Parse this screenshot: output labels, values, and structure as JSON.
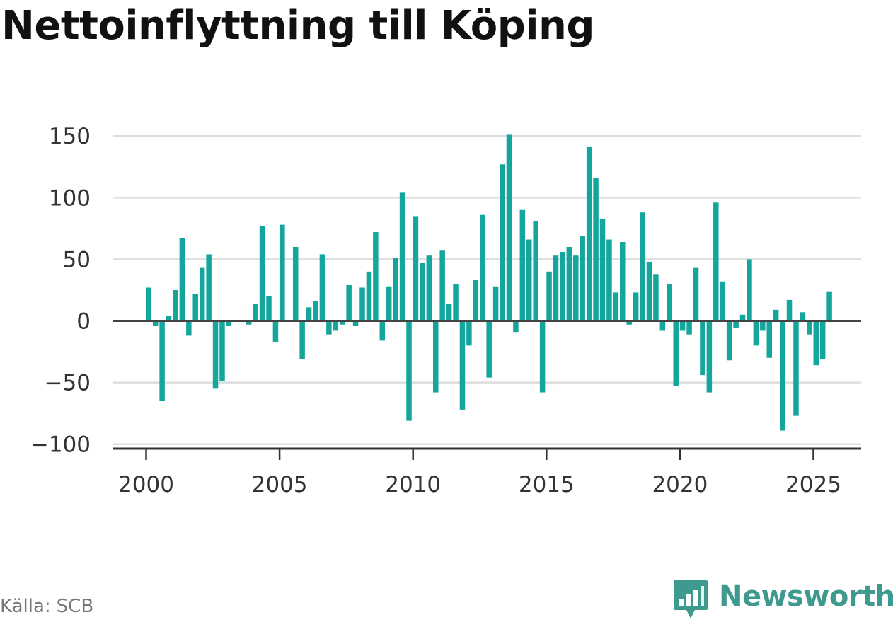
{
  "title": "Nettoinflyttning till Köping",
  "source": {
    "label": "Källa:",
    "value": "SCB"
  },
  "brand": {
    "name": "Newsworthy",
    "color": "#3e9a8f",
    "icon": "bar-chart-speech-bubble-icon"
  },
  "colors": {
    "bar": "#14a59c",
    "grid": "#dddddd",
    "zero_line": "#444444",
    "axis": "#333333"
  },
  "chart_data": {
    "type": "bar",
    "title": "Nettoinflyttning till Köping",
    "xlabel": "",
    "ylabel": "",
    "x_ticks": [
      "2000",
      "2005",
      "2010",
      "2015",
      "2020",
      "2025"
    ],
    "y_ticks": [
      "150",
      "100",
      "50",
      "0",
      "−50",
      "−100"
    ],
    "y_tick_values": [
      150,
      100,
      50,
      0,
      -50,
      -100
    ],
    "ylim": [
      -104,
      152
    ],
    "grid": true,
    "frequency": "quarterly",
    "start_period": "2000 Q1",
    "values": [
      27,
      -4,
      -65,
      4,
      25,
      67,
      -12,
      22,
      43,
      54,
      -55,
      -49,
      -4,
      0,
      0,
      -3,
      14,
      77,
      20,
      -17,
      78,
      0,
      60,
      -31,
      11,
      16,
      54,
      -11,
      -8,
      -3,
      29,
      -4,
      27,
      40,
      72,
      -16,
      28,
      51,
      104,
      -81,
      85,
      47,
      53,
      -58,
      57,
      14,
      30,
      -72,
      -20,
      33,
      86,
      -46,
      28,
      127,
      151,
      -9,
      90,
      66,
      81,
      -58,
      40,
      53,
      56,
      60,
      53,
      69,
      141,
      116,
      83,
      66,
      23,
      64,
      -3,
      23,
      88,
      48,
      38,
      -8,
      30,
      -53,
      -8,
      -11,
      43,
      -44,
      -58,
      96,
      32,
      -32,
      -6,
      5,
      50,
      -20,
      -8,
      -30,
      9,
      -89,
      17,
      -77,
      7,
      -11,
      -36,
      -31,
      24
    ]
  }
}
